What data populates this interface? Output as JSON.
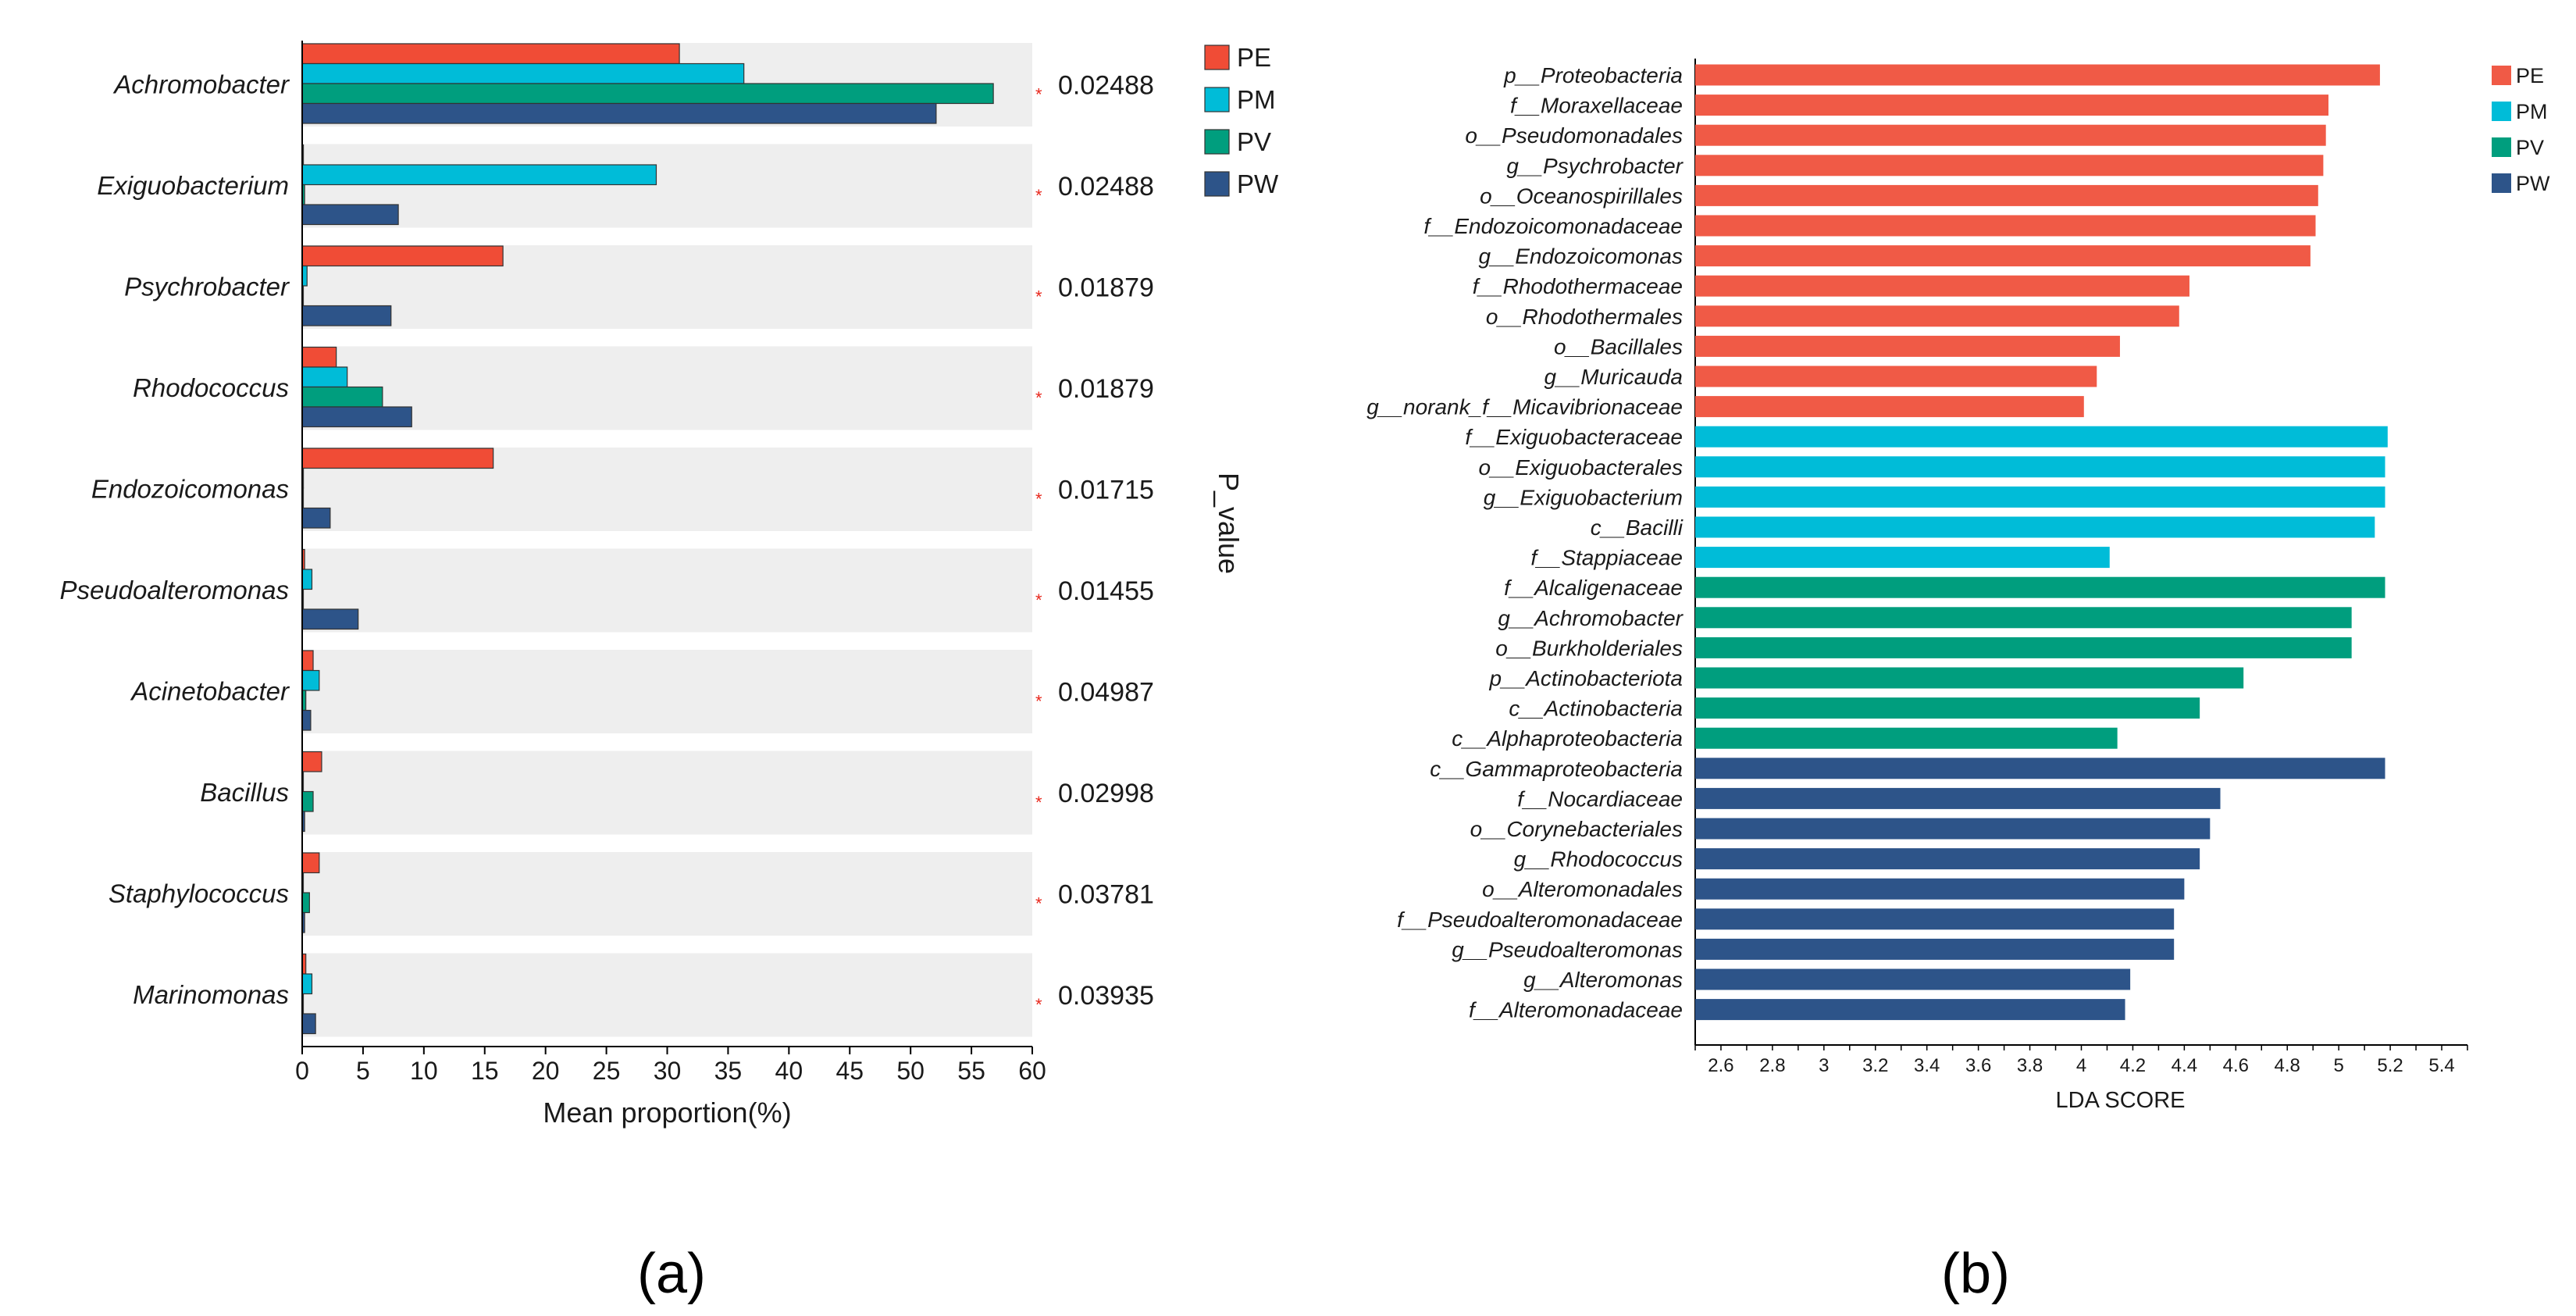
{
  "chart_data": [
    {
      "panel": "a",
      "type": "bar",
      "orientation": "horizontal",
      "panel_label": "(a)",
      "xlabel": "Mean proportion(%)",
      "right_axis_label": "P_value",
      "xlim": [
        0,
        60
      ],
      "xticks": [
        "0",
        "5",
        "10",
        "15",
        "20",
        "25",
        "30",
        "35",
        "40",
        "45",
        "50",
        "55",
        "60"
      ],
      "significance_marker": "*",
      "categories": [
        "Achromobacter",
        "Exiguobacterium",
        "Psychrobacter",
        "Rhodococcus",
        "Endozoicomonas",
        "Pseudoalteromonas",
        "Acinetobacter",
        "Bacillus",
        "Staphylococcus",
        "Marinomonas"
      ],
      "p_values": [
        "0.02488",
        "0.02488",
        "0.01879",
        "0.01879",
        "0.01715",
        "0.01455",
        "0.04987",
        "0.02998",
        "0.03781",
        "0.03935"
      ],
      "series": [
        {
          "name": "PE",
          "color": "#f04c36",
          "values": [
            31.0,
            0.1,
            16.5,
            2.8,
            15.7,
            0.2,
            0.9,
            1.6,
            1.4,
            0.3
          ]
        },
        {
          "name": "PM",
          "color": "#00bcd8",
          "values": [
            36.3,
            29.1,
            0.4,
            3.7,
            0.1,
            0.8,
            1.4,
            0.05,
            0.05,
            0.8
          ]
        },
        {
          "name": "PV",
          "color": "#009e7e",
          "values": [
            56.8,
            0.2,
            0.05,
            6.6,
            0.05,
            0.05,
            0.3,
            0.9,
            0.6,
            0.05
          ]
        },
        {
          "name": "PW",
          "color": "#2d5489",
          "values": [
            52.1,
            7.9,
            7.3,
            9.0,
            2.3,
            4.6,
            0.7,
            0.2,
            0.2,
            1.1
          ]
        }
      ],
      "legend": [
        "PE",
        "PM",
        "PV",
        "PW"
      ]
    },
    {
      "panel": "b",
      "type": "bar",
      "orientation": "horizontal",
      "panel_label": "(b)",
      "xlabel": "LDA SCORE",
      "xlim": [
        2.5,
        5.5
      ],
      "xticks": [
        "2.6",
        "2.8",
        "3",
        "3.2",
        "3.4",
        "3.6",
        "3.8",
        "4",
        "4.2",
        "4.4",
        "4.6",
        "4.8",
        "5",
        "5.2",
        "5.4"
      ],
      "legend": [
        {
          "name": "PE",
          "color": "#f05a46"
        },
        {
          "name": "PM",
          "color": "#00bcd8"
        },
        {
          "name": "PV",
          "color": "#009e7e"
        },
        {
          "name": "PW",
          "color": "#2d5489"
        }
      ],
      "bars": [
        {
          "label": "p__Proteobacteria",
          "group": "PE",
          "value": 5.16
        },
        {
          "label": "f__Moraxellaceae",
          "group": "PE",
          "value": 4.96
        },
        {
          "label": "o__Pseudomonadales",
          "group": "PE",
          "value": 4.95
        },
        {
          "label": "g__Psychrobacter",
          "group": "PE",
          "value": 4.94
        },
        {
          "label": "o__Oceanospirillales",
          "group": "PE",
          "value": 4.92
        },
        {
          "label": "f__Endozoicomonadaceae",
          "group": "PE",
          "value": 4.91
        },
        {
          "label": "g__Endozoicomonas",
          "group": "PE",
          "value": 4.89
        },
        {
          "label": "f__Rhodothermaceae",
          "group": "PE",
          "value": 4.42
        },
        {
          "label": "o__Rhodothermales",
          "group": "PE",
          "value": 4.38
        },
        {
          "label": "o__Bacillales",
          "group": "PE",
          "value": 4.15
        },
        {
          "label": "g__Muricauda",
          "group": "PE",
          "value": 4.06
        },
        {
          "label": "g__norank_f__Micavibrionaceae",
          "group": "PE",
          "value": 4.01
        },
        {
          "label": "f__Exiguobacteraceae",
          "group": "PM",
          "value": 5.19
        },
        {
          "label": "o__Exiguobacterales",
          "group": "PM",
          "value": 5.18
        },
        {
          "label": "g__Exiguobacterium",
          "group": "PM",
          "value": 5.18
        },
        {
          "label": "c__Bacilli",
          "group": "PM",
          "value": 5.14
        },
        {
          "label": "f__Stappiaceae",
          "group": "PM",
          "value": 4.11
        },
        {
          "label": "f__Alcaligenaceae",
          "group": "PV",
          "value": 5.18
        },
        {
          "label": "g__Achromobacter",
          "group": "PV",
          "value": 5.05
        },
        {
          "label": "o__Burkholderiales",
          "group": "PV",
          "value": 5.05
        },
        {
          "label": "p__Actinobacteriota",
          "group": "PV",
          "value": 4.63
        },
        {
          "label": "c__Actinobacteria",
          "group": "PV",
          "value": 4.46
        },
        {
          "label": "c__Alphaproteobacteria",
          "group": "PV",
          "value": 4.14
        },
        {
          "label": "c__Gammaproteobacteria",
          "group": "PW",
          "value": 5.18
        },
        {
          "label": "f__Nocardiaceae",
          "group": "PW",
          "value": 4.54
        },
        {
          "label": "o__Corynebacteriales",
          "group": "PW",
          "value": 4.5
        },
        {
          "label": "g__Rhodococcus",
          "group": "PW",
          "value": 4.46
        },
        {
          "label": "o__Alteromonadales",
          "group": "PW",
          "value": 4.4
        },
        {
          "label": "f__Pseudoalteromonadaceae",
          "group": "PW",
          "value": 4.36
        },
        {
          "label": "g__Pseudoalteromonas",
          "group": "PW",
          "value": 4.36
        },
        {
          "label": "g__Alteromonas",
          "group": "PW",
          "value": 4.19
        },
        {
          "label": "f__Alteromonadaceae",
          "group": "PW",
          "value": 4.17
        }
      ]
    }
  ]
}
